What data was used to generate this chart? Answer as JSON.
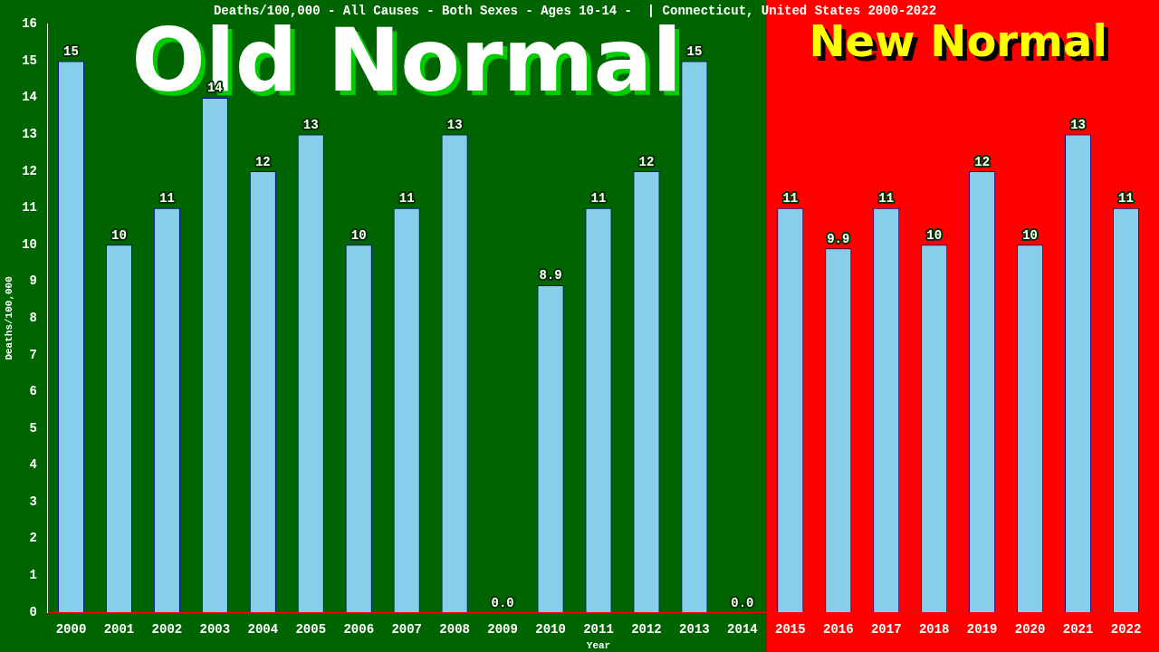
{
  "chart_data": {
    "type": "bar",
    "title": "Deaths/100,000 - All Causes - Both Sexes - Ages 10-14 -  | Connecticut, United States 2000-2022",
    "xlabel": "Year",
    "ylabel": "Deaths/100,000",
    "categories": [
      "2000",
      "2001",
      "2002",
      "2003",
      "2004",
      "2005",
      "2006",
      "2007",
      "2008",
      "2009",
      "2010",
      "2011",
      "2012",
      "2013",
      "2014",
      "2015",
      "2016",
      "2017",
      "2018",
      "2019",
      "2020",
      "2021",
      "2022"
    ],
    "series": [
      {
        "color": "#87ceeb",
        "values": [
          15,
          10,
          11,
          14,
          12,
          13,
          10,
          11,
          13,
          0,
          8.9,
          11,
          12,
          15,
          0,
          11,
          9.9,
          11,
          10,
          12,
          10,
          13,
          11
        ],
        "value_labels": [
          "15",
          "10",
          "11",
          "14",
          "12",
          "13",
          "10",
          "11",
          "13",
          "0.0",
          "8.9",
          "11",
          "12",
          "15",
          "0.0",
          "11",
          "9.9",
          "11",
          "10",
          "12",
          "10",
          "13",
          "11"
        ]
      }
    ],
    "ylim": [
      0,
      16
    ],
    "yticks": [
      0,
      1,
      2,
      3,
      4,
      5,
      6,
      7,
      8,
      9,
      10,
      11,
      12,
      13,
      14,
      15,
      16
    ],
    "grid": false,
    "legend": false,
    "bands": [
      {
        "axis": "x",
        "from": "2000",
        "to": "2014",
        "label": "Old Normal",
        "color": "#006400"
      },
      {
        "axis": "x",
        "from": "2015",
        "to": "2022",
        "label": "New Normal",
        "color": "#ff0000"
      }
    ]
  }
}
